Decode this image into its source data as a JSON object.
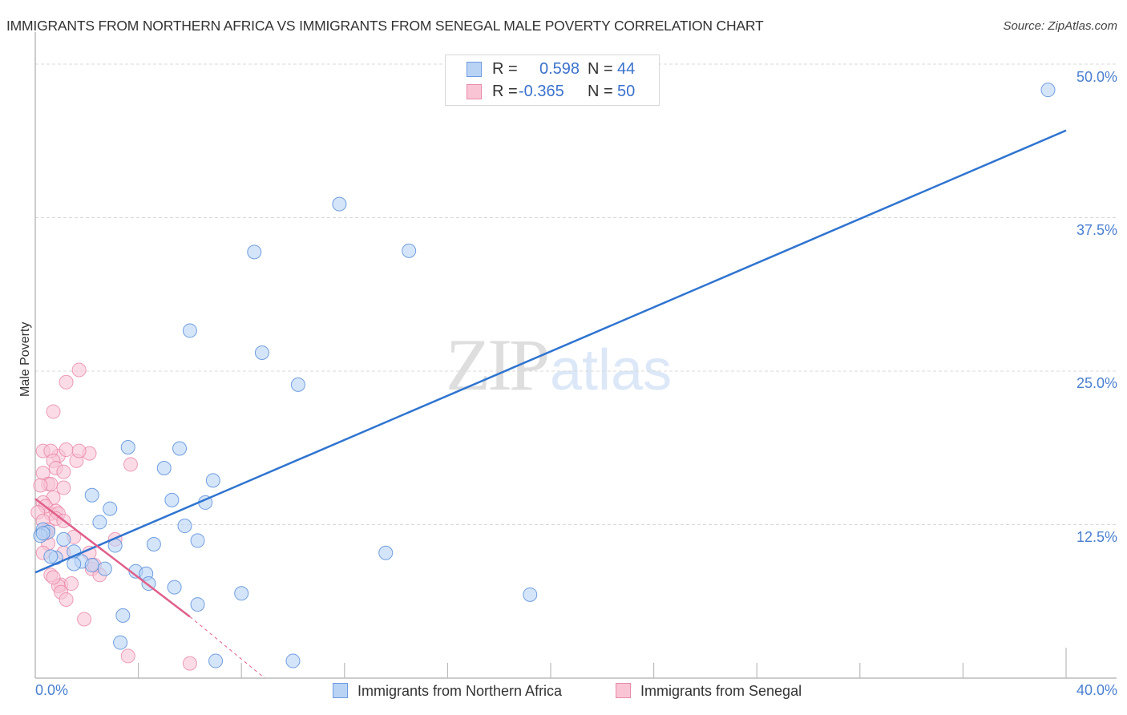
{
  "header": {
    "title": "IMMIGRANTS FROM NORTHERN AFRICA VS IMMIGRANTS FROM SENEGAL MALE POVERTY CORRELATION CHART",
    "source": "Source: ZipAtlas.com"
  },
  "watermark": {
    "zip": "ZIP",
    "atlas": "atlas"
  },
  "legend_top": {
    "rows": [
      {
        "r_label": "R =",
        "r_value": "0.598",
        "n_label": "N =",
        "n_value": "44"
      },
      {
        "r_label": "R =",
        "r_value": "-0.365",
        "n_label": "N =",
        "n_value": "50"
      }
    ]
  },
  "legend_bottom": {
    "items": [
      {
        "label": "Immigrants from Northern Africa"
      },
      {
        "label": "Immigrants from Senegal"
      }
    ]
  },
  "axes": {
    "ylabel": "Male Poverty",
    "y_ticks": [
      "50.0%",
      "37.5%",
      "25.0%",
      "12.5%"
    ],
    "x_ticks": [
      "0.0%",
      "40.0%"
    ]
  },
  "colors": {
    "blue_fill": "#b9d3f5",
    "blue_stroke": "#5b8fdb",
    "blue_line": "#2f74d0",
    "pink_fill": "#f9c5d5",
    "pink_stroke": "#e87fa0",
    "pink_line": "#e0608a",
    "tick_text": "#4a7fd0",
    "grid": "#d9d9d9"
  },
  "chart_data": {
    "type": "scatter",
    "title": "IMMIGRANTS FROM NORTHERN AFRICA VS IMMIGRANTS FROM SENEGAL MALE POVERTY CORRELATION CHART",
    "xlabel": "",
    "ylabel": "Male Poverty",
    "xlim": [
      0,
      40
    ],
    "ylim": [
      0,
      50
    ],
    "x_tick_labels": [
      "0.0%",
      "40.0%"
    ],
    "y_tick_labels": [
      "12.5%",
      "25.0%",
      "37.5%",
      "50.0%"
    ],
    "grid": {
      "horizontal_dashed": true,
      "values": [
        12.5,
        25.0,
        37.5,
        50.0
      ]
    },
    "legend_position": "top-center and bottom",
    "series": [
      {
        "name": "Immigrants from Northern Africa",
        "R": 0.598,
        "N": 44,
        "color": "#b9d3f5",
        "trendline": {
          "x": [
            0,
            40
          ],
          "y": [
            8.6,
            44.6
          ]
        },
        "points": [
          [
            39.3,
            47.9
          ],
          [
            11.8,
            38.6
          ],
          [
            8.5,
            34.7
          ],
          [
            14.5,
            34.8
          ],
          [
            6.0,
            28.3
          ],
          [
            8.8,
            26.5
          ],
          [
            10.2,
            23.9
          ],
          [
            3.6,
            18.8
          ],
          [
            5.6,
            18.7
          ],
          [
            5.0,
            17.1
          ],
          [
            6.9,
            16.1
          ],
          [
            2.2,
            14.9
          ],
          [
            5.3,
            14.5
          ],
          [
            6.6,
            14.3
          ],
          [
            2.9,
            13.8
          ],
          [
            2.5,
            12.7
          ],
          [
            5.8,
            12.4
          ],
          [
            0.3,
            12.1
          ],
          [
            0.5,
            11.9
          ],
          [
            6.3,
            11.2
          ],
          [
            1.1,
            11.3
          ],
          [
            4.6,
            10.9
          ],
          [
            13.6,
            10.2
          ],
          [
            3.1,
            10.8
          ],
          [
            1.5,
            10.3
          ],
          [
            0.8,
            9.8
          ],
          [
            1.8,
            9.5
          ],
          [
            2.2,
            9.2
          ],
          [
            2.7,
            8.9
          ],
          [
            3.9,
            8.7
          ],
          [
            4.3,
            8.5
          ],
          [
            4.4,
            7.7
          ],
          [
            5.4,
            7.4
          ],
          [
            6.3,
            6.0
          ],
          [
            8.0,
            6.9
          ],
          [
            19.2,
            6.8
          ],
          [
            3.4,
            5.1
          ],
          [
            3.3,
            2.9
          ],
          [
            7.0,
            1.4
          ],
          [
            10.0,
            1.4
          ],
          [
            0.2,
            11.6
          ],
          [
            0.6,
            9.9
          ],
          [
            1.5,
            9.3
          ],
          [
            0.3,
            11.8
          ]
        ]
      },
      {
        "name": "Immigrants from Senegal",
        "R": -0.365,
        "N": 50,
        "color": "#f9c5d5",
        "trendline": {
          "x": [
            0,
            6.0
          ],
          "y": [
            14.6,
            5.0
          ],
          "dashed_extension": {
            "x": [
              6.0,
              8.9
            ],
            "y": [
              5.0,
              0
            ]
          }
        },
        "points": [
          [
            1.7,
            25.1
          ],
          [
            1.2,
            24.1
          ],
          [
            0.7,
            21.7
          ],
          [
            0.3,
            18.5
          ],
          [
            0.9,
            18.1
          ],
          [
            0.6,
            18.5
          ],
          [
            1.2,
            18.6
          ],
          [
            0.7,
            17.7
          ],
          [
            1.6,
            17.7
          ],
          [
            2.1,
            18.3
          ],
          [
            3.7,
            17.4
          ],
          [
            1.7,
            18.5
          ],
          [
            0.8,
            17.1
          ],
          [
            1.1,
            16.8
          ],
          [
            0.3,
            16.7
          ],
          [
            0.5,
            15.8
          ],
          [
            0.6,
            15.8
          ],
          [
            1.1,
            15.5
          ],
          [
            0.2,
            15.7
          ],
          [
            0.7,
            14.7
          ],
          [
            0.3,
            14.3
          ],
          [
            0.6,
            13.4
          ],
          [
            0.4,
            14.0
          ],
          [
            0.8,
            13.6
          ],
          [
            0.9,
            13.4
          ],
          [
            0.1,
            13.5
          ],
          [
            0.3,
            12.8
          ],
          [
            0.8,
            13.0
          ],
          [
            0.5,
            12.1
          ],
          [
            1.5,
            11.5
          ],
          [
            0.5,
            10.97
          ],
          [
            0.3,
            10.2
          ],
          [
            1.1,
            10.2
          ],
          [
            2.1,
            10.2
          ],
          [
            0.6,
            8.4
          ],
          [
            1.0,
            7.6
          ],
          [
            0.9,
            7.5
          ],
          [
            1.0,
            7.0
          ],
          [
            1.4,
            7.7
          ],
          [
            1.2,
            6.4
          ],
          [
            1.9,
            4.8
          ],
          [
            0.7,
            8.2
          ],
          [
            2.2,
            8.9
          ],
          [
            2.5,
            8.4
          ],
          [
            2.3,
            9.2
          ],
          [
            3.1,
            11.3
          ],
          [
            3.6,
            1.8
          ],
          [
            6.0,
            1.2
          ],
          [
            1.1,
            12.8
          ],
          [
            0.4,
            11.8
          ]
        ]
      }
    ]
  }
}
